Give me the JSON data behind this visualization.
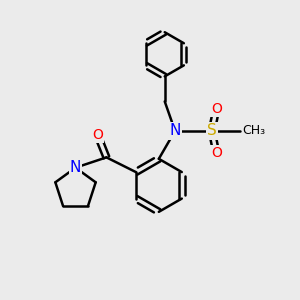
{
  "background_color": "#ebebeb",
  "atom_colors": {
    "N": "#0000ff",
    "O": "#ff0000",
    "S": "#ccaa00",
    "C": "#000000"
  },
  "bond_color": "#000000",
  "bond_width": 1.8,
  "fig_size": [
    3.0,
    3.0
  ],
  "dpi": 100
}
